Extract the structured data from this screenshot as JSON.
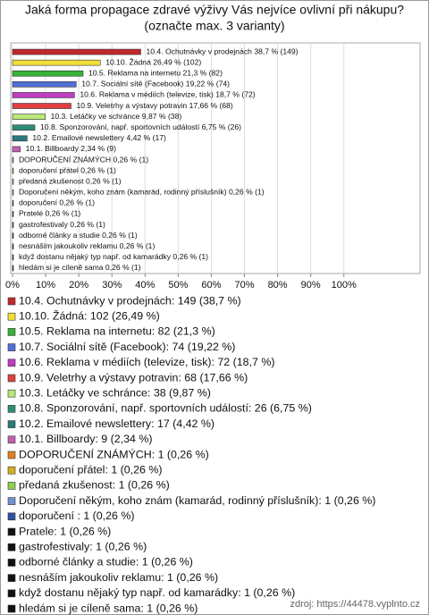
{
  "chart_data": {
    "type": "bar",
    "orientation": "horizontal",
    "title": "Jaká forma propagace zdravé výživy Vás nejvíce ovlivní při nákupu?",
    "subtitle": "(označte max. 3 varianty)",
    "bar_labels": [
      "10.4. Ochutnávky v prodejnách 38,7 % (149)",
      "10.10. Žádná 26,49 % (102)",
      "10.5. Reklama na internetu 21,3 % (82)",
      "10.7. Sociální sítě (Facebook) 19,22 % (74)",
      "10.6. Reklama v médiích (televize, tisk) 18,7 % (72)",
      "10.9. Veletrhy a výstavy potravin 17,66 % (68)",
      "10.3. Letáčky ve schránce 9,87 % (38)",
      "10.8. Sponzorování, např. sportovních událostí 6,75 % (26)",
      "10.2. Emailové newslettery 4,42 % (17)",
      "10.1. Billboardy 2,34 % (9)",
      "DOPORUČENÍ ZNÁMÝCH 0,26 % (1)",
      "doporučení přátel 0,26 % (1)",
      "předaná zkušenost 0,26 % (1)",
      "Doporučení někým, koho znám (kamarád, rodinný příslušník) 0,26 % (1)",
      "doporučení  0,26 % (1)",
      "Pratelé 0,26 % (1)",
      "gastrofestivaly 0,26 % (1)",
      "odborné články a studie 0,26 % (1)",
      "nesnáším jakoukoliv reklamu 0,26 % (1)",
      "když dostanu nějaký typ např. od kamarádky 0,26 % (1)",
      "hledám si je cíleně sama 0,26 % (1)"
    ],
    "values": [
      38.7,
      26.49,
      21.3,
      19.22,
      18.7,
      17.66,
      9.87,
      6.75,
      4.42,
      2.34,
      0.26,
      0.26,
      0.26,
      0.26,
      0.26,
      0.26,
      0.26,
      0.26,
      0.26,
      0.26,
      0.26
    ],
    "colors": [
      "#c0282a",
      "#f2de3a",
      "#36b336",
      "#4f6fd6",
      "#c03cc0",
      "#e04040",
      "#b8e878",
      "#2e8c76",
      "#2a7a80",
      "#c060b0",
      "#e08020",
      "#d4b020",
      "#90d050",
      "#7090d0",
      "#3050a0",
      "#111111",
      "#111111",
      "#111111",
      "#111111",
      "#111111",
      "#111111"
    ],
    "legend": [
      "10.4. Ochutnávky v prodejnách: 149 (38,7 %)",
      "10.10. Žádná: 102 (26,49 %)",
      "10.5. Reklama na internetu: 82 (21,3 %)",
      "10.7. Sociální sítě (Facebook): 74 (19,22 %)",
      "10.6. Reklama v médiích (televize, tisk): 72 (18,7 %)",
      "10.9. Veletrhy a výstavy potravin: 68 (17,66 %)",
      "10.3. Letáčky ve schránce: 38 (9,87 %)",
      "10.8. Sponzorování, např. sportovních událostí: 26 (6,75 %)",
      "10.2. Emailové newslettery: 17 (4,42 %)",
      "10.1. Billboardy: 9 (2,34 %)",
      "DOPORUČENÍ ZNÁMÝCH: 1 (0,26 %)",
      "doporučení přátel: 1 (0,26 %)",
      "předaná zkušenost: 1 (0,26 %)",
      "Doporučení někým, koho znám (kamarád, rodinný příslušník): 1 (0,26 %)",
      "doporučení : 1 (0,26 %)",
      "Pratele: 1 (0,26 %)",
      "gastrofestivaly: 1 (0,26 %)",
      "odborné články a studie: 1 (0,26 %)",
      "nesnáším jakoukoliv reklamu: 1 (0,26 %)",
      "když dostanu nějaký typ např. od kamarádky: 1 (0,26 %)",
      "hledám si je cíleně sama: 1 (0,26 %)"
    ],
    "xlim": [
      0,
      123
    ],
    "xticks": [
      {
        "value": 0,
        "label": "0%"
      },
      {
        "value": 10,
        "label": "10%"
      },
      {
        "value": 20,
        "label": "20%"
      },
      {
        "value": 30,
        "label": "30%"
      },
      {
        "value": 40,
        "label": "40%"
      },
      {
        "value": 50,
        "label": "50%"
      },
      {
        "value": 60,
        "label": "60%"
      },
      {
        "value": 70,
        "label": "70%"
      },
      {
        "value": 80,
        "label": "80%"
      },
      {
        "value": 90,
        "label": "90%"
      },
      {
        "value": 100,
        "label": "100%"
      }
    ],
    "grid": true,
    "source": "zdroj: https://44478.vyplnto.cz"
  }
}
